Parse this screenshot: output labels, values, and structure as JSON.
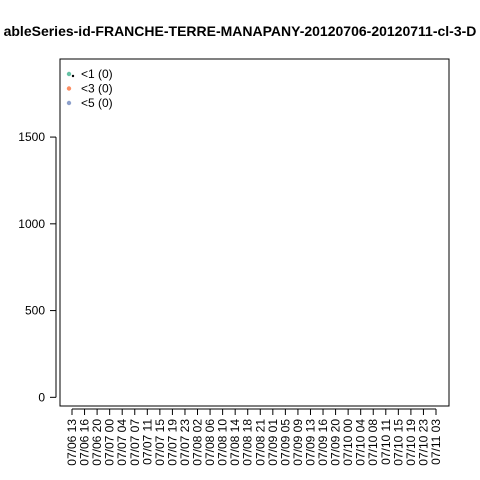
{
  "chart_data": {
    "type": "line",
    "title": "ableSeries-id-FRANCHE-TERRE-MANAPANY-20120706-20120711-cl-3-D",
    "xlabel": "",
    "ylabel": "",
    "ylim": [
      -50,
      1950
    ],
    "y_ticks": [
      0,
      500,
      1000,
      1500
    ],
    "x_tick_labels": [
      "07/06 13",
      "07/06 16",
      "07/06 20",
      "07/07 00",
      "07/07 04",
      "07/07 07",
      "07/07 11",
      "07/07 15",
      "07/07 19",
      "07/07 23",
      "07/08 02",
      "07/08 06",
      "07/08 10",
      "07/08 14",
      "07/08 18",
      "07/08 21",
      "07/09 01",
      "07/09 05",
      "07/09 09",
      "07/09 13",
      "07/09 16",
      "07/09 20",
      "07/10 00",
      "07/10 04",
      "07/10 08",
      "07/10 11",
      "07/10 15",
      "07/10 19",
      "07/10 23",
      "07/11 03"
    ],
    "grid": false,
    "legend_position": "top-left",
    "series": [
      {
        "name": "<1 (0)",
        "color": "#66c2a5",
        "values": []
      },
      {
        "name": "<3 (0)",
        "color": "#fc8d62",
        "values": []
      },
      {
        "name": "<5 (0)",
        "color": "#8da0cb",
        "values": []
      }
    ]
  }
}
